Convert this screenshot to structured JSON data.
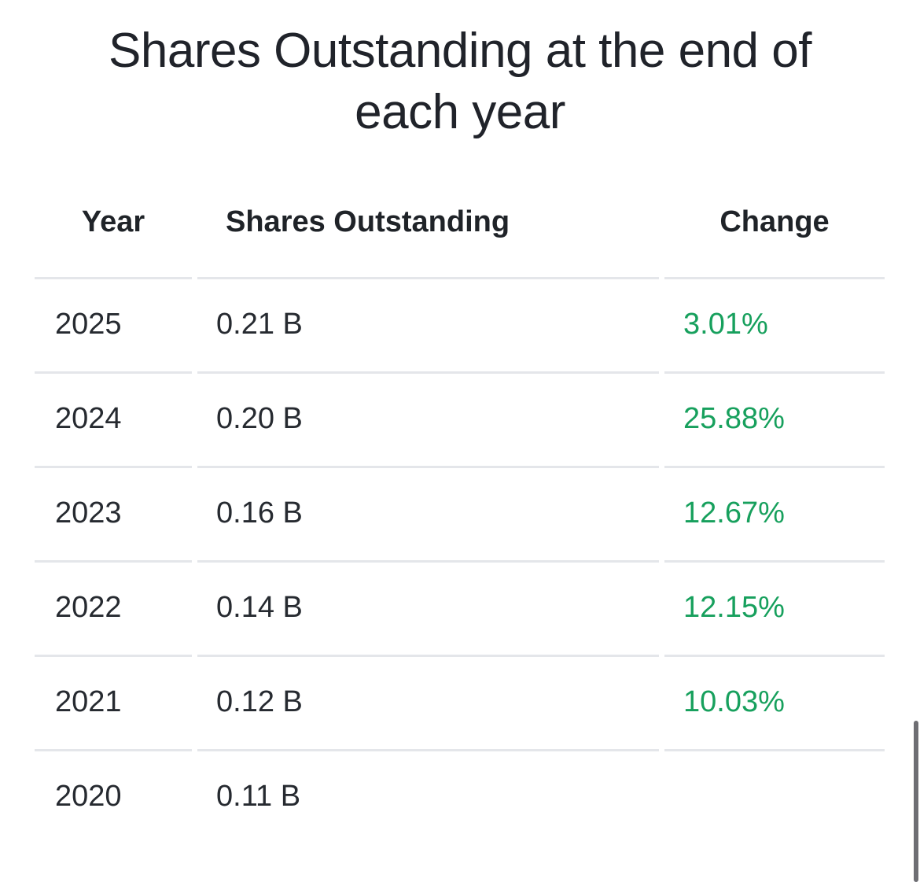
{
  "title_line1": "Shares Outstanding at the end of",
  "title_line2": "each year",
  "table": {
    "headers": {
      "year": "Year",
      "shares": "Shares Outstanding",
      "change": "Change"
    },
    "rows": [
      {
        "year": "2025",
        "shares": "0.21 B",
        "change": "3.01%"
      },
      {
        "year": "2024",
        "shares": "0.20 B",
        "change": "25.88%"
      },
      {
        "year": "2023",
        "shares": "0.16 B",
        "change": "12.67%"
      },
      {
        "year": "2022",
        "shares": "0.14 B",
        "change": "12.15%"
      },
      {
        "year": "2021",
        "shares": "0.12 B",
        "change": "10.03%"
      },
      {
        "year": "2020",
        "shares": "0.11 B",
        "change": ""
      }
    ]
  },
  "colors": {
    "positive_change": "#17a05d",
    "divider": "#e4e6ea"
  }
}
